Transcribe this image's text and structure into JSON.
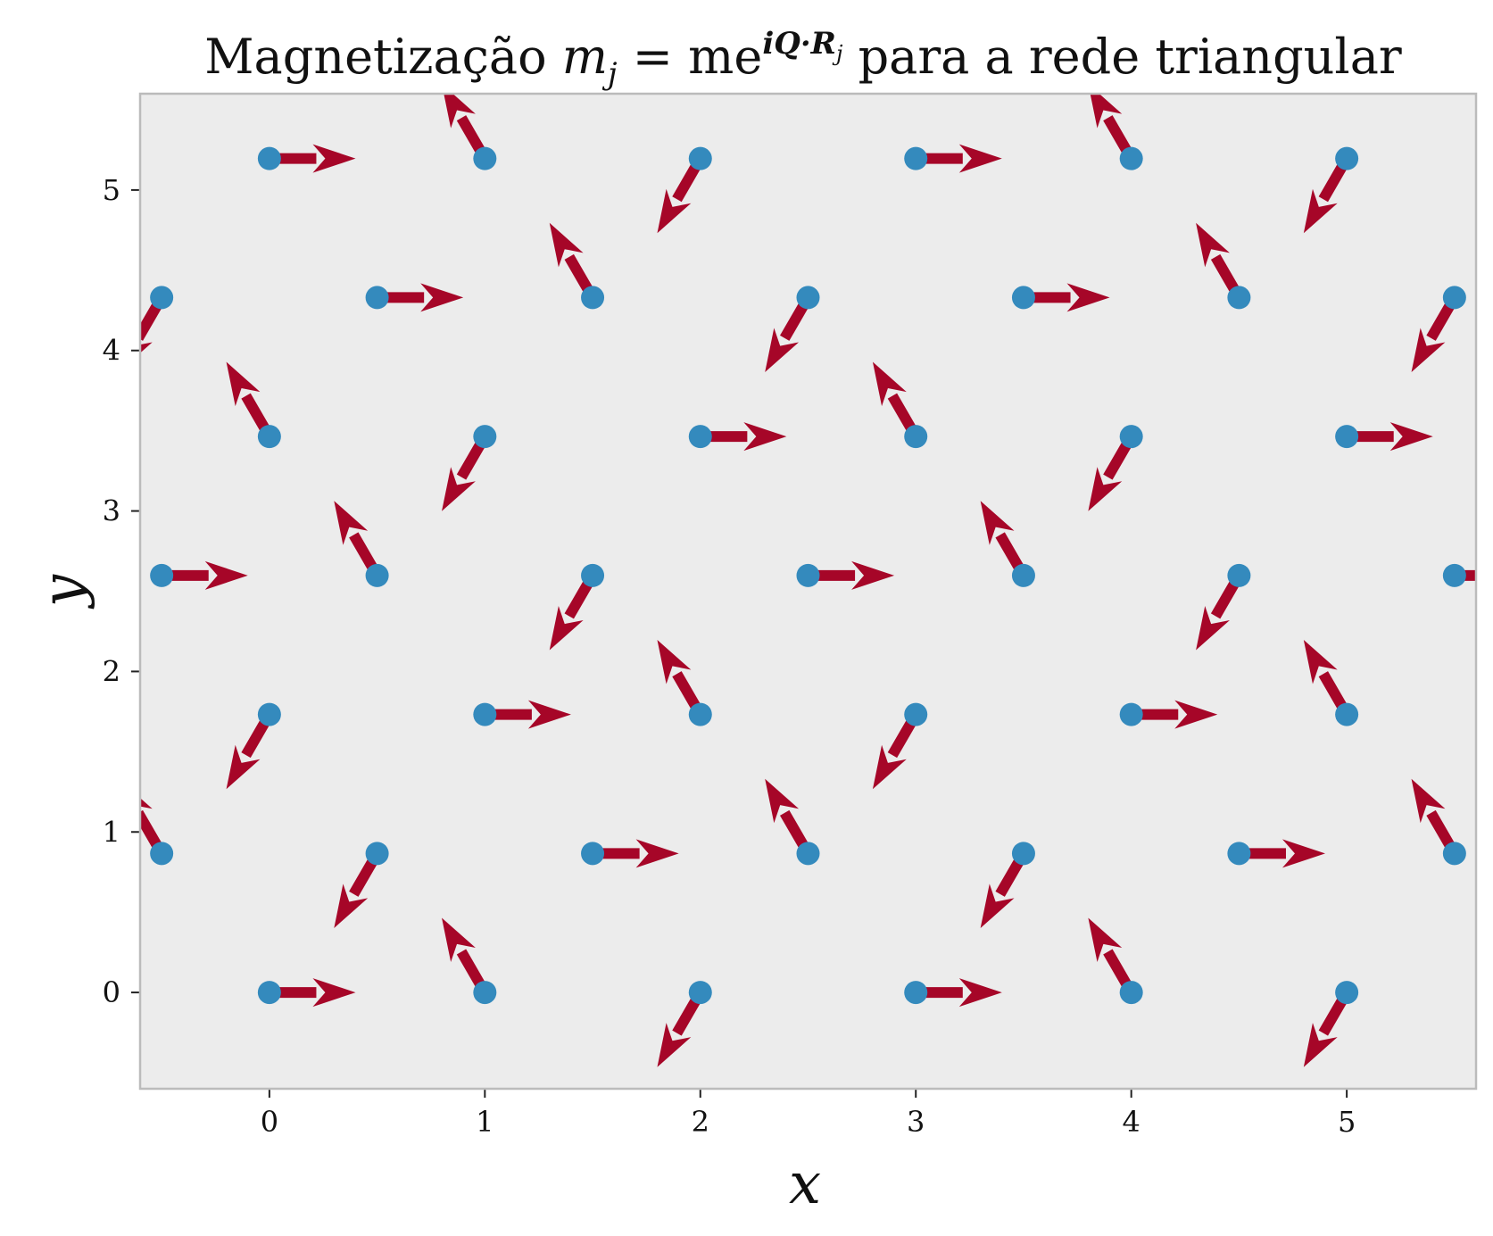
{
  "chart_data": {
    "type": "scatter",
    "title_prefix": "Magnetização ",
    "title_formula": "m",
    "title_sub": "j",
    "title_eq": " = me",
    "title_exp": "iQ·R",
    "title_exp_sub": "j",
    "title_suffix": " para a rede triangular",
    "xlabel": "x",
    "ylabel": "y",
    "xlim": [
      -0.6,
      5.6
    ],
    "ylim": [
      -0.6,
      5.6
    ],
    "xticks": [
      "0",
      "1",
      "2",
      "3",
      "4",
      "5"
    ],
    "yticks": [
      "0",
      "1",
      "2",
      "3",
      "4",
      "5"
    ],
    "grid": false,
    "colors": {
      "background": "#ececec",
      "frame": "#bbbbbb",
      "point": "#348abd",
      "arrow": "#a60628"
    },
    "lattice": {
      "rows": 7,
      "row_spacing": 0.866,
      "x_spacing": 1.0,
      "odd_row_offset": 0.5
    },
    "spin_angles_deg": [
      0,
      120,
      240
    ],
    "arrow_length": 0.4
  }
}
